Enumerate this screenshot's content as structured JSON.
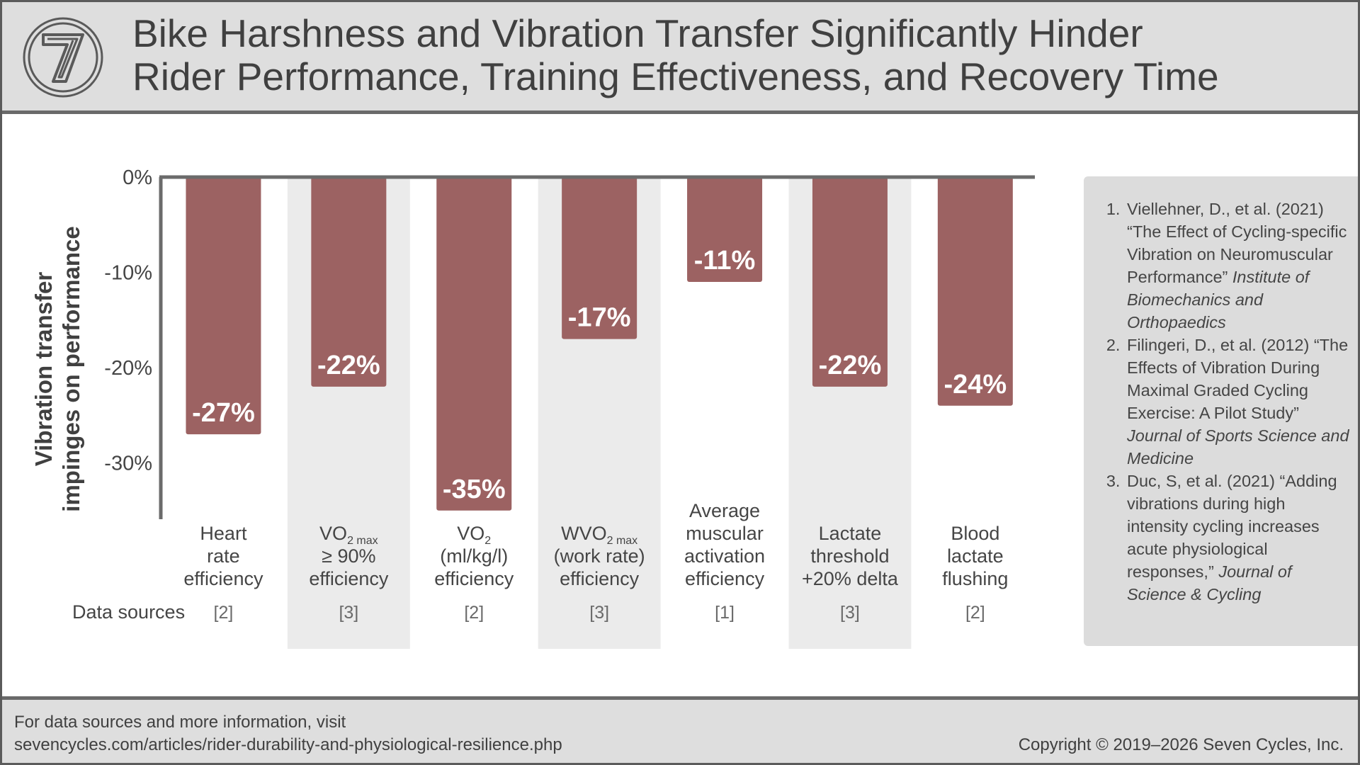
{
  "header": {
    "title_line1": "Bike Harshness and Vibration Transfer Significantly Hinder",
    "title_line2": "Rider Performance, Training Effectiveness, and Recovery Time",
    "logo_text": "7"
  },
  "chart_data": {
    "type": "bar",
    "ylabel_line1": "Vibration transfer",
    "ylabel_line2": "impinges on performance",
    "ylim": [
      -36,
      0
    ],
    "yticks": [
      0,
      -10,
      -20,
      -30
    ],
    "ytick_labels": [
      "0%",
      "-10%",
      "-20%",
      "-30%"
    ],
    "grid": false,
    "categories": [
      [
        "Heart",
        "rate",
        "efficiency"
      ],
      [
        [
          "VO",
          "2 max"
        ],
        "≥ 90%",
        "efficiency"
      ],
      [
        [
          "VO",
          "2"
        ],
        "(ml/kg/l)",
        "efficiency"
      ],
      [
        [
          "WVO",
          "2 max"
        ],
        "(work rate)",
        "efficiency"
      ],
      [
        "Average",
        "muscular",
        "activation",
        "efficiency"
      ],
      [
        "Lactate",
        "threshold",
        "+20% delta"
      ],
      [
        "Blood",
        "lactate",
        "flushing"
      ]
    ],
    "values": [
      -27,
      -22,
      -35,
      -17,
      -11,
      -22,
      -24
    ],
    "value_labels": [
      "-27%",
      "-22%",
      "-35%",
      "-17%",
      "-11%",
      "-22%",
      "-24%"
    ],
    "sources_label": "Data sources",
    "sources": [
      "[2]",
      "[3]",
      "[2]",
      "[3]",
      "[1]",
      "[3]",
      "[2]"
    ],
    "bar_color": "#9c6262",
    "alt_band_color": "#ebebeb",
    "axis_color": "#6b6b6b"
  },
  "references": [
    {
      "text": "Viellehner, D., et al. (2021) “The Effect of Cycling-specific Vibration on Neuromuscular Performance”",
      "source": "Institute of Biomechanics and Orthopaedics"
    },
    {
      "text": "Filingeri, D., et al. (2012) “The Effects of Vibration During Maximal Graded Cycling Exercise: A Pilot Study”",
      "source": "Journal of Sports Science and Medicine"
    },
    {
      "text": "Duc, S, et al. (2021) “Adding vibrations during high intensity cycling increases acute physiological responses,”",
      "source": "Journal of Science & Cycling"
    }
  ],
  "footer": {
    "note_line1": "For data sources and more information, visit",
    "note_line2": "sevencycles.com/articles/rider-durability-and-physiological-resilience.php",
    "copyright": "Copyright © 2019–2026 Seven Cycles, Inc."
  }
}
